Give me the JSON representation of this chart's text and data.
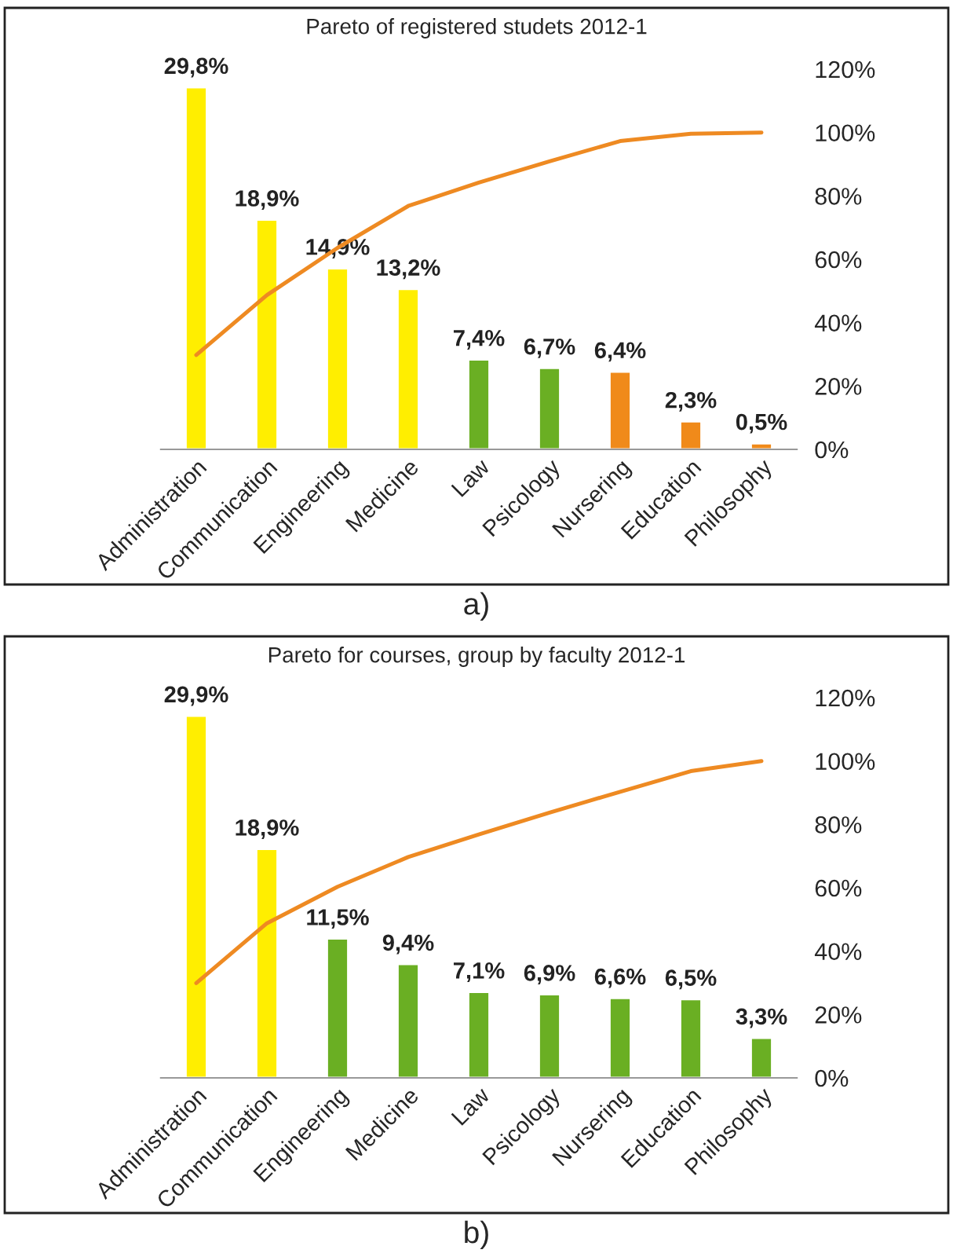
{
  "chart_data": [
    {
      "type": "bar",
      "title": "Pareto of registered studets 2012-1",
      "annotations": [
        "a)"
      ],
      "categories": [
        "Administration",
        "Communication",
        "Engineering",
        "Medicine",
        "Law",
        "Psicology",
        "Nursering",
        "Education",
        "Philosophy"
      ],
      "y2lim": [
        0,
        120
      ],
      "y2ticks": [
        {
          "value": 0,
          "label": "0%"
        },
        {
          "value": 20,
          "label": "20%"
        },
        {
          "value": 40,
          "label": "40%"
        },
        {
          "value": 60,
          "label": "60%"
        },
        {
          "value": 80,
          "label": "80%"
        },
        {
          "value": 100,
          "label": "100%"
        },
        {
          "value": 120,
          "label": "120%"
        }
      ],
      "tick_labels": [
        "x",
        "y2"
      ],
      "grid": false,
      "legend": false,
      "series": [
        {
          "colors": [
            "#ffee00",
            "#ffee00",
            "#ffee00",
            "#ffee00",
            "#6aaf23",
            "#6aaf23",
            "#f08a1a",
            "#f08a1a",
            "#f08a1a"
          ],
          "values": [
            29.8,
            18.9,
            14.9,
            13.2,
            7.4,
            6.7,
            6.4,
            2.3,
            0.5
          ],
          "value_labels": [
            "29,8%",
            "18,9%",
            "14,9%",
            "13,2%",
            "7,4%",
            "6,7%",
            "6,4%",
            "2,3%",
            "0,5%"
          ]
        },
        {
          "type": "line",
          "axis": "y2",
          "color": "#ee8a22",
          "values": [
            29.8,
            48.7,
            63.6,
            76.8,
            84.2,
            90.9,
            97.3,
            99.6,
            100
          ]
        }
      ]
    },
    {
      "type": "bar",
      "title": "Pareto for courses, group by faculty 2012-1",
      "annotations": [
        "b)"
      ],
      "categories": [
        "Administration",
        "Communication",
        "Engineering",
        "Medicine",
        "Law",
        "Psicology",
        "Nursering",
        "Education",
        "Philosophy"
      ],
      "y2lim": [
        0,
        120
      ],
      "y2ticks": [
        {
          "value": 0,
          "label": "0%"
        },
        {
          "value": 20,
          "label": "20%"
        },
        {
          "value": 40,
          "label": "40%"
        },
        {
          "value": 60,
          "label": "60%"
        },
        {
          "value": 80,
          "label": "80%"
        },
        {
          "value": 100,
          "label": "100%"
        },
        {
          "value": 120,
          "label": "120%"
        }
      ],
      "tick_labels": [
        "x",
        "y2"
      ],
      "grid": false,
      "legend": false,
      "series": [
        {
          "colors": [
            "#ffee00",
            "#ffee00",
            "#6aaf23",
            "#6aaf23",
            "#6aaf23",
            "#6aaf23",
            "#6aaf23",
            "#6aaf23",
            "#6aaf23"
          ],
          "values": [
            29.9,
            18.9,
            11.5,
            9.4,
            7.1,
            6.9,
            6.6,
            6.5,
            3.3
          ],
          "value_labels": [
            "29,9%",
            "18,9%",
            "11,5%",
            "9,4%",
            "7,1%",
            "6,9%",
            "6,6%",
            "6,5%",
            "3,3%"
          ]
        },
        {
          "type": "line",
          "axis": "y2",
          "color": "#ee8a22",
          "values": [
            29.9,
            48.8,
            60.3,
            69.7,
            76.8,
            83.7,
            90.3,
            96.8,
            100
          ]
        }
      ]
    }
  ]
}
